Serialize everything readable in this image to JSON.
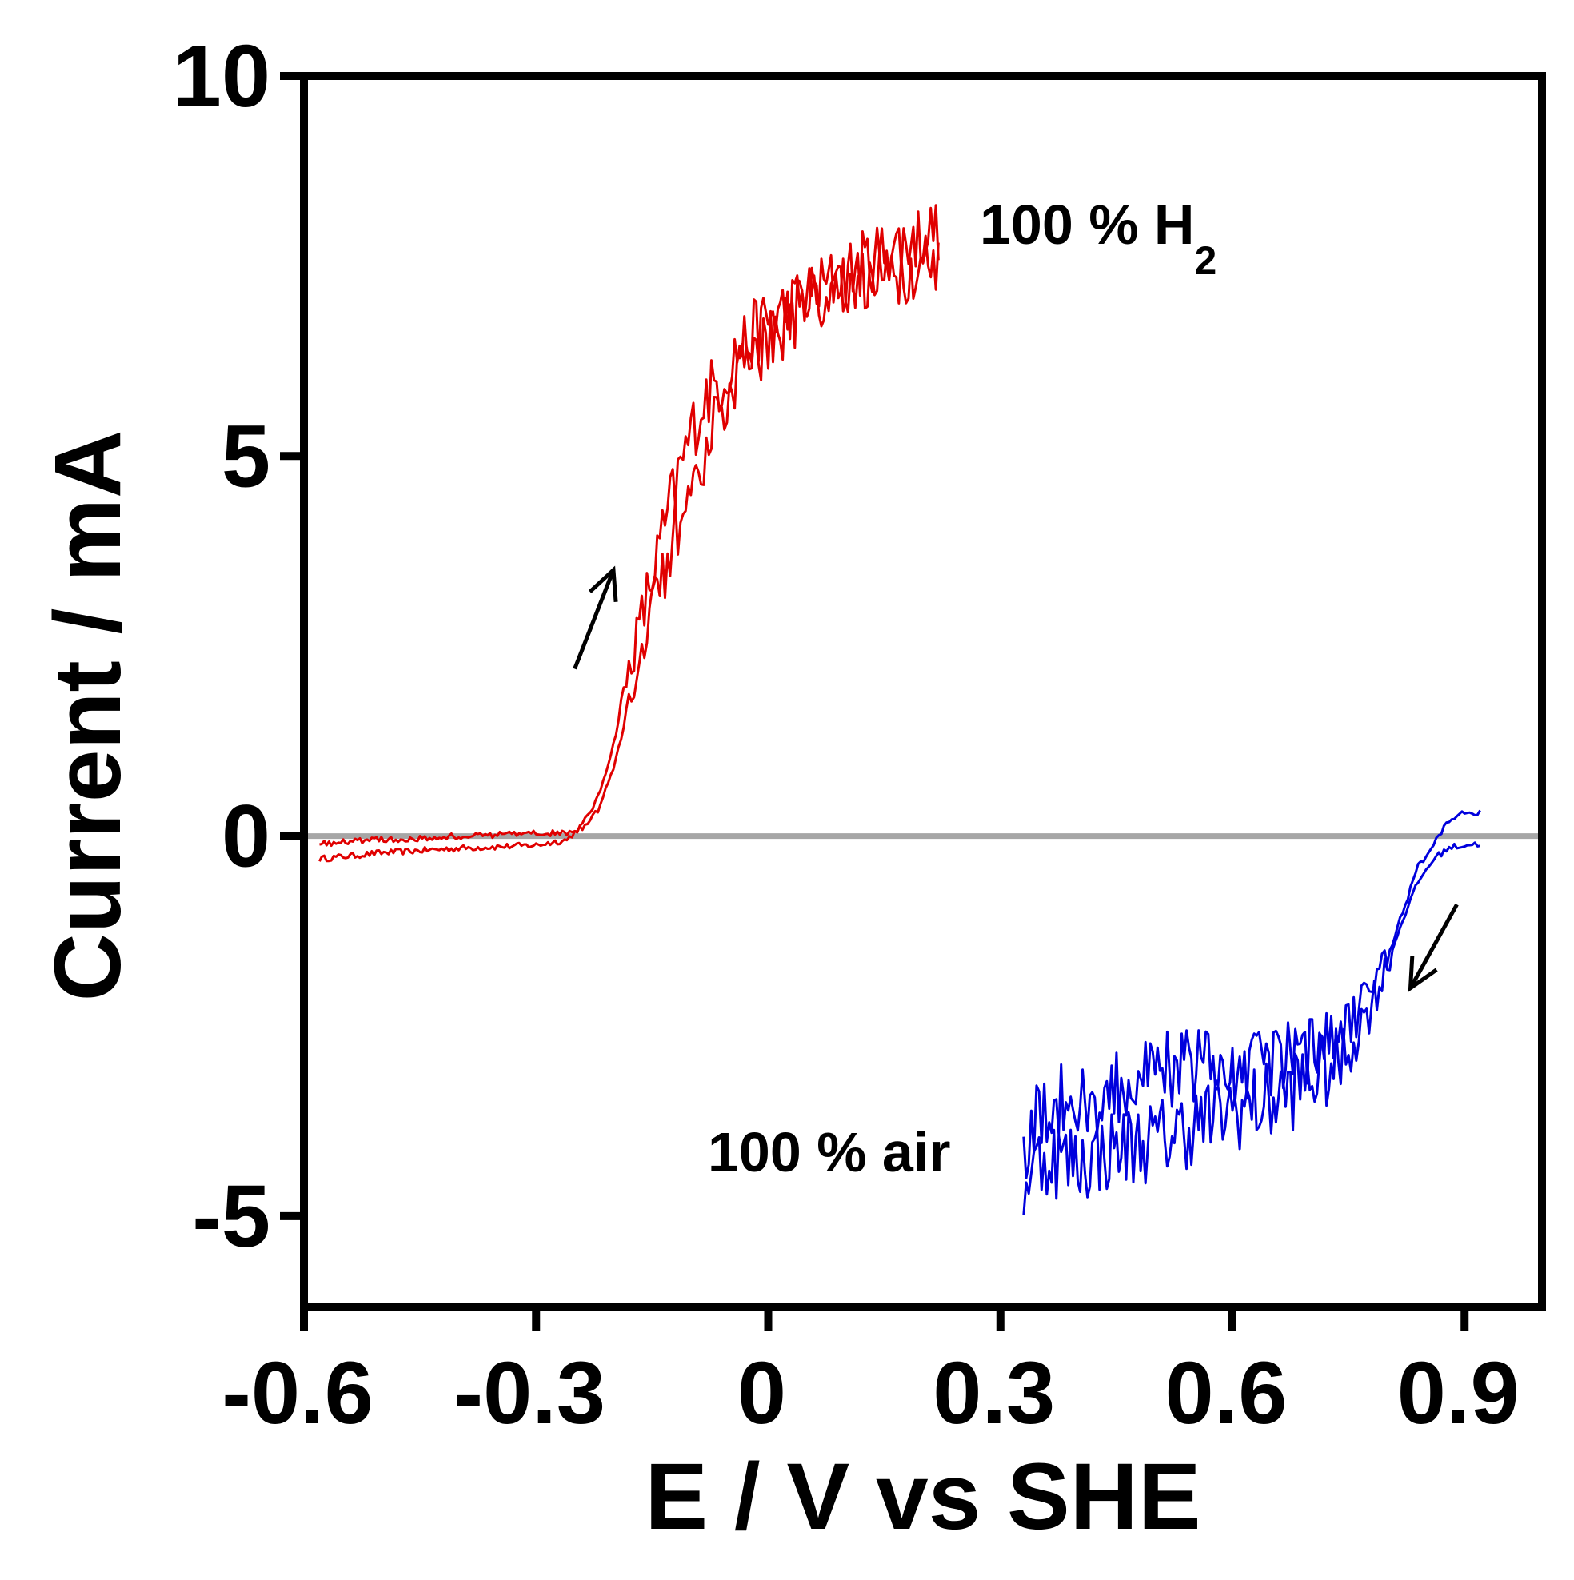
{
  "chart_data": {
    "type": "line",
    "xlabel": "E / V vs SHE",
    "ylabel": "Current / mA",
    "xlim": [
      -0.6,
      1.0
    ],
    "ylim": [
      -6.2,
      10
    ],
    "xticks": [
      {
        "value": -0.6,
        "label": "-0.6"
      },
      {
        "value": -0.3,
        "label": "-0.3"
      },
      {
        "value": 0,
        "label": "0"
      },
      {
        "value": 0.3,
        "label": "0.3"
      },
      {
        "value": 0.6,
        "label": "0.6"
      },
      {
        "value": 0.9,
        "label": "0.9"
      }
    ],
    "yticks": [
      {
        "value": 10,
        "label": "10"
      },
      {
        "value": 5,
        "label": "5"
      },
      {
        "value": 0,
        "label": "0"
      },
      {
        "value": -5,
        "label": "-5"
      }
    ],
    "zero_line": {
      "value": 0,
      "color": "#a6a6a6"
    },
    "series": [
      {
        "color": "#e00000",
        "annotation": "100 % H",
        "annotation_sub": "2",
        "noise": 0.45,
        "forward": [
          [
            -0.58,
            -0.3
          ],
          [
            -0.5,
            -0.22
          ],
          [
            -0.4,
            -0.16
          ],
          [
            -0.3,
            -0.12
          ],
          [
            -0.26,
            -0.05
          ],
          [
            -0.24,
            0.15
          ],
          [
            -0.22,
            0.5
          ],
          [
            -0.2,
            1.2
          ],
          [
            -0.18,
            2.2
          ],
          [
            -0.16,
            3.0
          ],
          [
            -0.14,
            3.8
          ],
          [
            -0.12,
            4.6
          ],
          [
            -0.1,
            5.3
          ],
          [
            -0.08,
            5.8
          ],
          [
            -0.06,
            6.0
          ],
          [
            -0.04,
            6.4
          ],
          [
            0,
            6.8
          ],
          [
            0.05,
            7.1
          ],
          [
            0.1,
            7.4
          ],
          [
            0.15,
            7.7
          ],
          [
            0.2,
            7.9
          ],
          [
            0.22,
            8.0
          ]
        ],
        "backward": [
          [
            0.22,
            7.4
          ],
          [
            0.2,
            7.5
          ],
          [
            0.15,
            7.4
          ],
          [
            0.1,
            7.3
          ],
          [
            0.05,
            7.0
          ],
          [
            0,
            6.5
          ],
          [
            -0.04,
            6.0
          ],
          [
            -0.06,
            5.6
          ],
          [
            -0.08,
            5.1
          ],
          [
            -0.1,
            4.6
          ],
          [
            -0.12,
            4.0
          ],
          [
            -0.14,
            3.3
          ],
          [
            -0.16,
            2.6
          ],
          [
            -0.18,
            1.7
          ],
          [
            -0.2,
            0.9
          ],
          [
            -0.22,
            0.35
          ],
          [
            -0.24,
            0.1
          ],
          [
            -0.26,
            0.05
          ],
          [
            -0.3,
            0.03
          ],
          [
            -0.4,
            0.0
          ],
          [
            -0.5,
            -0.05
          ],
          [
            -0.58,
            -0.1
          ]
        ]
      },
      {
        "color": "#0000dd",
        "annotation": "100 % air",
        "annotation_sub": "",
        "noise": 0.55,
        "forward": [
          [
            0.92,
            0.3
          ],
          [
            0.9,
            0.32
          ],
          [
            0.88,
            0.2
          ],
          [
            0.86,
            -0.1
          ],
          [
            0.84,
            -0.4
          ],
          [
            0.82,
            -1.0
          ],
          [
            0.8,
            -1.6
          ],
          [
            0.78,
            -2.0
          ],
          [
            0.76,
            -2.4
          ],
          [
            0.74,
            -2.6
          ],
          [
            0.7,
            -2.8
          ],
          [
            0.65,
            -3.0
          ],
          [
            0.6,
            -3.1
          ],
          [
            0.55,
            -3.0
          ],
          [
            0.5,
            -3.1
          ],
          [
            0.45,
            -3.3
          ],
          [
            0.4,
            -3.4
          ],
          [
            0.36,
            -3.6
          ],
          [
            0.34,
            -3.9
          ],
          [
            0.33,
            -4.2
          ]
        ],
        "backward": [
          [
            0.33,
            -4.6
          ],
          [
            0.34,
            -4.4
          ],
          [
            0.36,
            -4.2
          ],
          [
            0.4,
            -4.3
          ],
          [
            0.45,
            -4.1
          ],
          [
            0.5,
            -4.0
          ],
          [
            0.55,
            -3.8
          ],
          [
            0.6,
            -3.6
          ],
          [
            0.65,
            -3.5
          ],
          [
            0.7,
            -3.2
          ],
          [
            0.74,
            -3.0
          ],
          [
            0.76,
            -2.6
          ],
          [
            0.78,
            -2.2
          ],
          [
            0.8,
            -1.7
          ],
          [
            0.82,
            -1.1
          ],
          [
            0.84,
            -0.6
          ],
          [
            0.86,
            -0.3
          ],
          [
            0.88,
            -0.15
          ],
          [
            0.9,
            -0.12
          ],
          [
            0.92,
            -0.1
          ]
        ]
      }
    ],
    "arrows": [
      {
        "from": [
          -0.25,
          2.2
        ],
        "to": [
          -0.2,
          3.5
        ]
      },
      {
        "from": [
          0.89,
          -0.9
        ],
        "to": [
          0.83,
          -2.0
        ]
      }
    ]
  }
}
